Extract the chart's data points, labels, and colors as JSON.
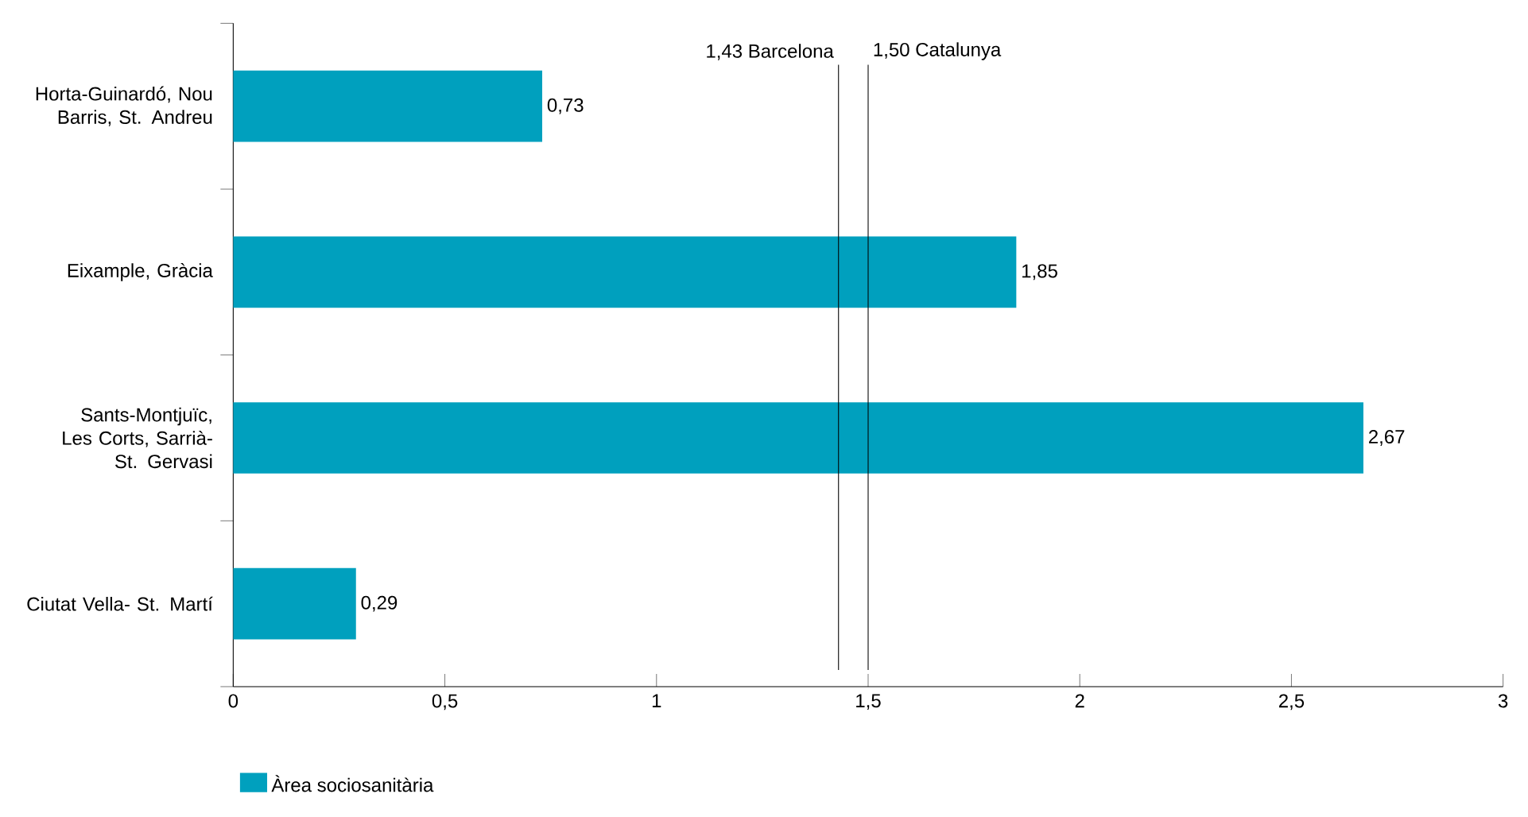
{
  "chart_data": {
    "type": "bar",
    "orientation": "horizontal",
    "categories": [
      "Horta-Guinardó, Nou Barris, St. Andreu",
      "Eixample, Gràcia",
      "Sants-Montjuïc, Les Corts, Sarrià-St. Gervasi",
      "Ciutat Vella- St.  Martí"
    ],
    "series": [
      {
        "name": "Àrea sociosanitària",
        "color": "#00a0be",
        "values": [
          0.73,
          1.85,
          2.67,
          0.29
        ]
      }
    ],
    "value_labels": [
      "0,73",
      "1,85",
      "2,67",
      "0,29"
    ],
    "xlim": [
      0,
      3
    ],
    "xticks": [
      0,
      {
        "value": 0.5,
        "label": "0,5"
      },
      1,
      {
        "value": 1.5,
        "label": "1,5"
      },
      2,
      {
        "value": 2.5,
        "label": "2,5"
      },
      3
    ],
    "ref_lines": [
      {
        "axis": "x",
        "value": 1.43,
        "label": "1,43  Barcelona",
        "color": "#000000"
      },
      {
        "axis": "x",
        "value": 1.5,
        "label": "1,50  Catalunya",
        "color": "#000000"
      }
    ],
    "grid": false,
    "legend": "bottom left"
  }
}
